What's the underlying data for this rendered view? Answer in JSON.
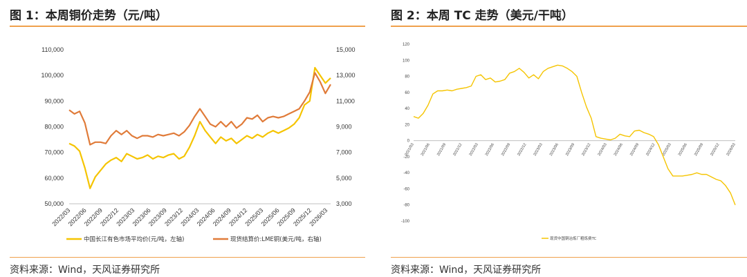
{
  "left": {
    "title": "图 1：本周铜价走势（元/吨）",
    "source": "资料来源：Wind，天风证券研究所",
    "chart_data": {
      "type": "line",
      "x": [
        "2022/03",
        "2022/06",
        "2022/09",
        "2022/12",
        "2023/03",
        "2023/06",
        "2023/09",
        "2023/12",
        "2024/03",
        "2024/06",
        "2024/09",
        "2024/12",
        "2025/03",
        "2025/06",
        "2025/09",
        "2025/12",
        "2026/03"
      ],
      "y_left_ticks": [
        "50,000",
        "60,000",
        "70,000",
        "80,000",
        "90,000",
        "100,000",
        "110,000"
      ],
      "y_right_ticks": [
        "3,000",
        "5,000",
        "7,000",
        "9,000",
        "11,000",
        "13,000",
        "15,000"
      ],
      "ylim_left": [
        50000,
        110000
      ],
      "ylim_right": [
        3000,
        15000
      ],
      "series": [
        {
          "name": "中国长江有色市场平均价(元/吨，左轴)",
          "axis": "left",
          "color": "#f5c400",
          "values": [
            [
              0,
              73500
            ],
            [
              1,
              72500
            ],
            [
              2,
              70500
            ],
            [
              3,
              64000
            ],
            [
              4,
              56000
            ],
            [
              5,
              60500
            ],
            [
              6,
              63000
            ],
            [
              7,
              65500
            ],
            [
              8,
              67000
            ],
            [
              9,
              68000
            ],
            [
              10,
              66500
            ],
            [
              11,
              69500
            ],
            [
              12,
              68500
            ],
            [
              13,
              67500
            ],
            [
              14,
              68000
            ],
            [
              15,
              69000
            ],
            [
              16,
              67500
            ],
            [
              17,
              68500
            ],
            [
              18,
              68000
            ],
            [
              19,
              69000
            ],
            [
              20,
              69500
            ],
            [
              21,
              67500
            ],
            [
              22,
              68500
            ],
            [
              23,
              72000
            ],
            [
              24,
              76500
            ],
            [
              25,
              82000
            ],
            [
              26,
              78500
            ],
            [
              27,
              76000
            ],
            [
              28,
              73500
            ],
            [
              29,
              76000
            ],
            [
              30,
              74500
            ],
            [
              31,
              75500
            ],
            [
              32,
              73500
            ],
            [
              33,
              75000
            ],
            [
              34,
              76500
            ],
            [
              35,
              75500
            ],
            [
              36,
              77000
            ],
            [
              37,
              76000
            ],
            [
              38,
              77500
            ],
            [
              39,
              78500
            ],
            [
              40,
              77500
            ],
            [
              41,
              78500
            ],
            [
              42,
              79500
            ],
            [
              43,
              81000
            ],
            [
              44,
              83500
            ],
            [
              45,
              88500
            ],
            [
              46,
              90000
            ],
            [
              47,
              103000
            ],
            [
              48,
              100000
            ],
            [
              49,
              97000
            ],
            [
              50,
              99000
            ]
          ]
        },
        {
          "name": "现货结算价:LME铜(美元/吨，右轴)",
          "axis": "right",
          "color": "#e07b39",
          "values": [
            [
              0,
              10300
            ],
            [
              1,
              10000
            ],
            [
              2,
              10200
            ],
            [
              3,
              9300
            ],
            [
              4,
              7600
            ],
            [
              5,
              7800
            ],
            [
              6,
              7800
            ],
            [
              7,
              7700
            ],
            [
              8,
              8300
            ],
            [
              9,
              8700
            ],
            [
              10,
              8400
            ],
            [
              11,
              8700
            ],
            [
              12,
              8300
            ],
            [
              13,
              8100
            ],
            [
              14,
              8300
            ],
            [
              15,
              8300
            ],
            [
              16,
              8200
            ],
            [
              17,
              8400
            ],
            [
              18,
              8300
            ],
            [
              19,
              8400
            ],
            [
              20,
              8500
            ],
            [
              21,
              8300
            ],
            [
              22,
              8600
            ],
            [
              23,
              9100
            ],
            [
              24,
              9800
            ],
            [
              25,
              10400
            ],
            [
              26,
              9800
            ],
            [
              27,
              9200
            ],
            [
              28,
              9000
            ],
            [
              29,
              9400
            ],
            [
              30,
              9000
            ],
            [
              31,
              9400
            ],
            [
              32,
              8900
            ],
            [
              33,
              9200
            ],
            [
              34,
              9700
            ],
            [
              35,
              9600
            ],
            [
              36,
              9900
            ],
            [
              37,
              9400
            ],
            [
              38,
              9700
            ],
            [
              39,
              9800
            ],
            [
              40,
              9700
            ],
            [
              41,
              9800
            ],
            [
              42,
              10000
            ],
            [
              43,
              10200
            ],
            [
              44,
              10400
            ],
            [
              45,
              11000
            ],
            [
              46,
              11700
            ],
            [
              47,
              13200
            ],
            [
              48,
              12500
            ],
            [
              49,
              11600
            ],
            [
              50,
              12300
            ]
          ]
        }
      ]
    }
  },
  "right": {
    "title": "图 2：本周 TC 走势（美元/干吨）",
    "source": "资料来源：Wind，天风证券研究所",
    "chart_data": {
      "type": "line",
      "x": [
        "2021/03",
        "2021/06",
        "2021/09",
        "2021/12",
        "2022/03",
        "2022/06",
        "2022/09",
        "2022/12",
        "2023/03",
        "2023/06",
        "2023/09",
        "2023/12",
        "2024/03",
        "2024/06",
        "2024/09",
        "2024/12",
        "2025/03",
        "2025/06",
        "2025/09",
        "2025/12",
        "2026/03"
      ],
      "y_ticks": [
        "-100",
        "-80",
        "-60",
        "-40",
        "-20",
        "0",
        "20",
        "40",
        "60",
        "80",
        "100",
        "120"
      ],
      "ylim": [
        -100,
        120
      ],
      "series": [
        {
          "name": "现货中国铜冶炼厂粗炼费TC",
          "color": "#f5c400",
          "values": [
            [
              0,
              30
            ],
            [
              1,
              28
            ],
            [
              2,
              34
            ],
            [
              3,
              44
            ],
            [
              4,
              58
            ],
            [
              5,
              62
            ],
            [
              6,
              62
            ],
            [
              7,
              63
            ],
            [
              8,
              62
            ],
            [
              9,
              64
            ],
            [
              10,
              65
            ],
            [
              11,
              66
            ],
            [
              12,
              68
            ],
            [
              13,
              80
            ],
            [
              14,
              82
            ],
            [
              15,
              76
            ],
            [
              16,
              78
            ],
            [
              17,
              73
            ],
            [
              18,
              74
            ],
            [
              19,
              76
            ],
            [
              20,
              84
            ],
            [
              21,
              86
            ],
            [
              22,
              90
            ],
            [
              23,
              85
            ],
            [
              24,
              78
            ],
            [
              25,
              82
            ],
            [
              26,
              77
            ],
            [
              27,
              86
            ],
            [
              28,
              90
            ],
            [
              29,
              92
            ],
            [
              30,
              94
            ],
            [
              31,
              93
            ],
            [
              32,
              90
            ],
            [
              33,
              86
            ],
            [
              34,
              80
            ],
            [
              35,
              60
            ],
            [
              36,
              42
            ],
            [
              37,
              28
            ],
            [
              38,
              5
            ],
            [
              39,
              3
            ],
            [
              40,
              2
            ],
            [
              41,
              1
            ],
            [
              42,
              3
            ],
            [
              43,
              8
            ],
            [
              44,
              6
            ],
            [
              45,
              5
            ],
            [
              46,
              12
            ],
            [
              47,
              13
            ],
            [
              48,
              10
            ],
            [
              49,
              8
            ],
            [
              50,
              5
            ],
            [
              51,
              -5
            ],
            [
              52,
              -20
            ],
            [
              53,
              -35
            ],
            [
              54,
              -44
            ],
            [
              55,
              -44
            ],
            [
              56,
              -44
            ],
            [
              57,
              -43
            ],
            [
              58,
              -42
            ],
            [
              59,
              -40
            ],
            [
              60,
              -42
            ],
            [
              61,
              -42
            ],
            [
              62,
              -45
            ],
            [
              63,
              -48
            ],
            [
              64,
              -50
            ],
            [
              65,
              -56
            ],
            [
              66,
              -65
            ],
            [
              67,
              -80
            ]
          ]
        }
      ]
    }
  }
}
